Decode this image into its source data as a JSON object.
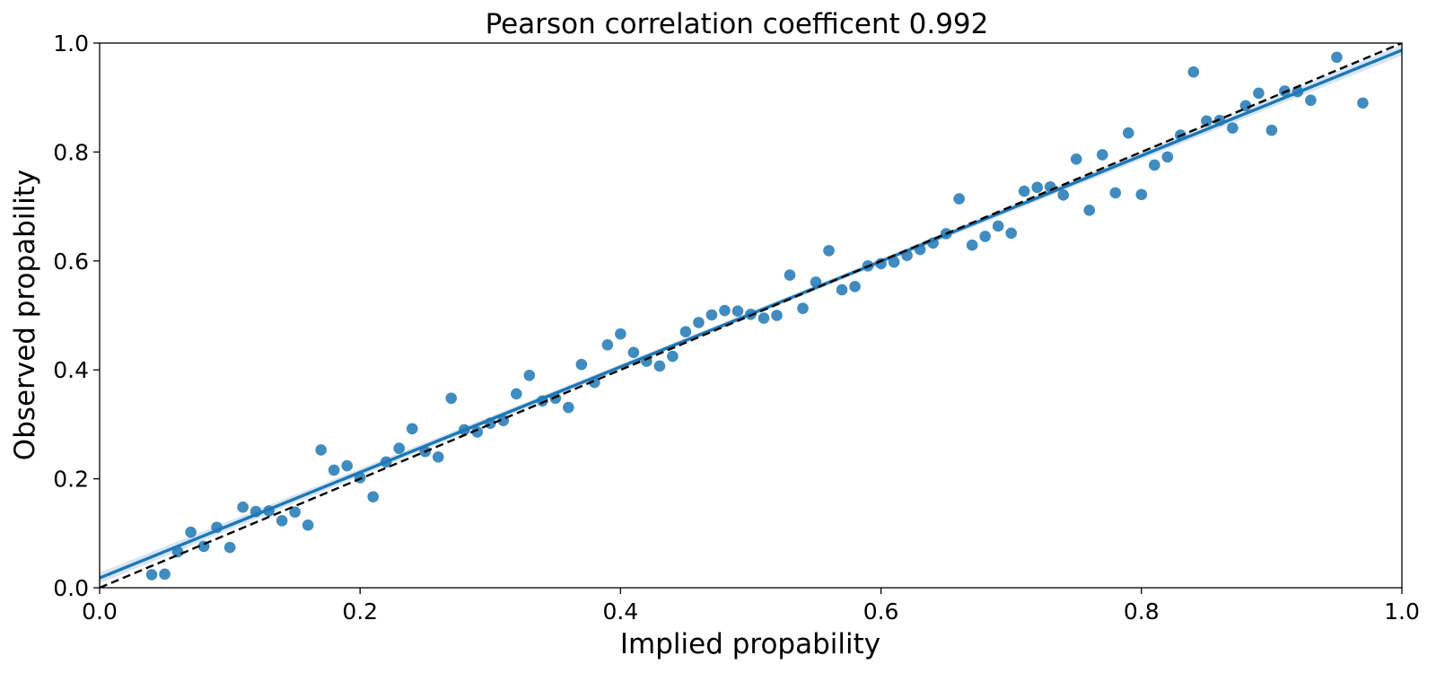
{
  "colors": {
    "points": "#1f77b4",
    "fit_line": "#1f77b4",
    "confidence_band": "#c6dcef",
    "reference_line": "#000000",
    "background": "#ffffff"
  },
  "chart_data": {
    "type": "scatter",
    "title": "Pearson correlation coefficent 0.992",
    "xlabel": "Implied propability",
    "ylabel": "Observed propability",
    "xlim": [
      0.0,
      1.0
    ],
    "ylim": [
      0.0,
      1.0
    ],
    "x_ticks": [
      "0.0",
      "0.2",
      "0.4",
      "0.6",
      "0.8",
      "1.0"
    ],
    "y_ticks": [
      "0.0",
      "0.2",
      "0.4",
      "0.6",
      "0.8",
      "1.0"
    ],
    "grid": false,
    "legend": "none",
    "series": [
      {
        "type": "scatter",
        "x": [
          0.04,
          0.05,
          0.06,
          0.07,
          0.08,
          0.09,
          0.1,
          0.11,
          0.12,
          0.13,
          0.14,
          0.15,
          0.16,
          0.17,
          0.18,
          0.19,
          0.2,
          0.21,
          0.22,
          0.23,
          0.24,
          0.25,
          0.26,
          0.27,
          0.28,
          0.29,
          0.3,
          0.31,
          0.32,
          0.33,
          0.34,
          0.35,
          0.36,
          0.37,
          0.38,
          0.39,
          0.4,
          0.41,
          0.42,
          0.43,
          0.44,
          0.45,
          0.46,
          0.47,
          0.48,
          0.49,
          0.5,
          0.51,
          0.52,
          0.53,
          0.54,
          0.55,
          0.56,
          0.57,
          0.58,
          0.59,
          0.6,
          0.61,
          0.62,
          0.63,
          0.64,
          0.65,
          0.66,
          0.67,
          0.68,
          0.69,
          0.7,
          0.71,
          0.72,
          0.73,
          0.74,
          0.75,
          0.76,
          0.77,
          0.78,
          0.79,
          0.8,
          0.81,
          0.82,
          0.83,
          0.84,
          0.85,
          0.86,
          0.87,
          0.88,
          0.89,
          0.9,
          0.91,
          0.92,
          0.93,
          0.95,
          0.97
        ],
        "y": [
          0.024,
          0.025,
          0.066,
          0.102,
          0.076,
          0.111,
          0.074,
          0.148,
          0.14,
          0.141,
          0.123,
          0.139,
          0.115,
          0.253,
          0.216,
          0.224,
          0.202,
          0.167,
          0.231,
          0.256,
          0.292,
          0.25,
          0.24,
          0.348,
          0.29,
          0.286,
          0.302,
          0.307,
          0.356,
          0.39,
          0.343,
          0.348,
          0.331,
          0.41,
          0.377,
          0.446,
          0.466,
          0.432,
          0.416,
          0.407,
          0.425,
          0.47,
          0.487,
          0.501,
          0.509,
          0.508,
          0.502,
          0.495,
          0.5,
          0.574,
          0.513,
          0.561,
          0.619,
          0.547,
          0.553,
          0.591,
          0.595,
          0.598,
          0.61,
          0.621,
          0.633,
          0.65,
          0.714,
          0.629,
          0.645,
          0.664,
          0.651,
          0.728,
          0.735,
          0.736,
          0.721,
          0.787,
          0.693,
          0.795,
          0.725,
          0.835,
          0.722,
          0.776,
          0.791,
          0.831,
          0.947,
          0.857,
          0.858,
          0.844,
          0.885,
          0.908,
          0.84,
          0.912,
          0.911,
          0.895,
          0.974,
          0.89
        ]
      },
      {
        "type": "line",
        "style": "solid",
        "x": [
          0.0,
          1.0
        ],
        "y": [
          0.018,
          0.987
        ]
      },
      {
        "type": "line",
        "style": "dashed",
        "x": [
          0.0,
          1.0
        ],
        "y": [
          0.0,
          1.0
        ]
      }
    ]
  }
}
